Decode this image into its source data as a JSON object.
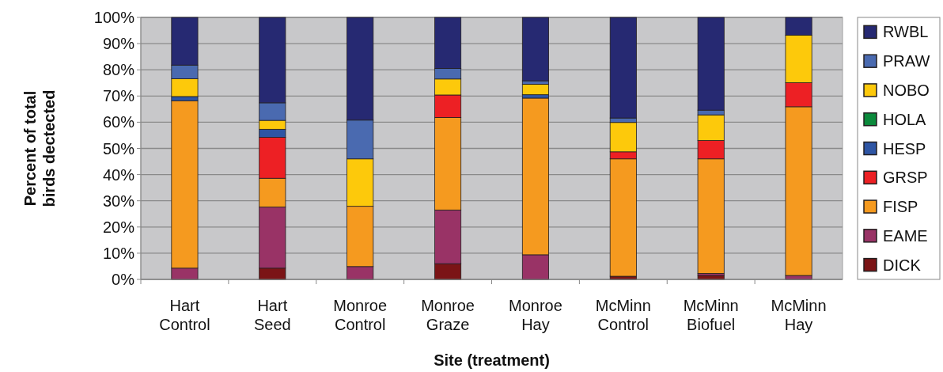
{
  "chart_data": {
    "type": "bar",
    "stacked": true,
    "xlabel": "Site (treatment)",
    "ylabel": "Percent of total birds dectected",
    "categories": [
      "Hart Control",
      "Hart Seed",
      "Monroe Control",
      "Monroe Graze",
      "Monroe Hay",
      "McMinn Control",
      "McMinn Biofuel",
      "McMinn Hay"
    ],
    "series": [
      {
        "name": "DICK",
        "color": "#7b1416",
        "values": [
          null,
          4.3,
          null,
          6.0,
          null,
          1.2,
          1.5,
          null
        ]
      },
      {
        "name": "EAME",
        "color": "#993366",
        "values": [
          4.3,
          23.3,
          4.9,
          20.5,
          9.4,
          null,
          0.8,
          1.5
        ]
      },
      {
        "name": "FISP",
        "color": "#f59a1f",
        "values": [
          63.9,
          11.0,
          23.0,
          35.3,
          59.8,
          44.8,
          43.7,
          64.4
        ]
      },
      {
        "name": "GRSP",
        "color": "#ed2024",
        "values": [
          null,
          15.6,
          null,
          8.6,
          null,
          2.7,
          7.0,
          9.2
        ]
      },
      {
        "name": "HESP",
        "color": "#2e55a4",
        "values": [
          1.6,
          3.1,
          null,
          null,
          1.3,
          null,
          null,
          null
        ]
      },
      {
        "name": "HOLA",
        "color": "#0b8a3c",
        "values": [
          null,
          null,
          null,
          null,
          null,
          null,
          null,
          null
        ]
      },
      {
        "name": "NOBO",
        "color": "#fdc90b",
        "values": [
          6.8,
          3.4,
          18.1,
          6.1,
          4.0,
          11.2,
          9.8,
          18.1
        ]
      },
      {
        "name": "PRAW",
        "color": "#4a6ab0",
        "values": [
          5.2,
          6.7,
          14.8,
          4.0,
          1.3,
          1.7,
          1.8,
          null
        ]
      },
      {
        "name": "RWBL",
        "color": "#262972",
        "values": [
          18.2,
          32.6,
          39.2,
          19.5,
          24.2,
          38.4,
          35.4,
          6.8
        ]
      }
    ],
    "ylim": [
      0,
      100
    ],
    "yticks": [
      {
        "value": 0,
        "label": "0%"
      },
      {
        "value": 10,
        "label": "10%"
      },
      {
        "value": 20,
        "label": "20%"
      },
      {
        "value": 30,
        "label": "30%"
      },
      {
        "value": 40,
        "label": "40%"
      },
      {
        "value": 50,
        "label": "50%"
      },
      {
        "value": 60,
        "label": "60%"
      },
      {
        "value": 70,
        "label": "70%"
      },
      {
        "value": 80,
        "label": "80%"
      },
      {
        "value": 90,
        "label": "90%"
      },
      {
        "value": 100,
        "label": "100%"
      }
    ],
    "grid": "y",
    "legend": "right"
  }
}
